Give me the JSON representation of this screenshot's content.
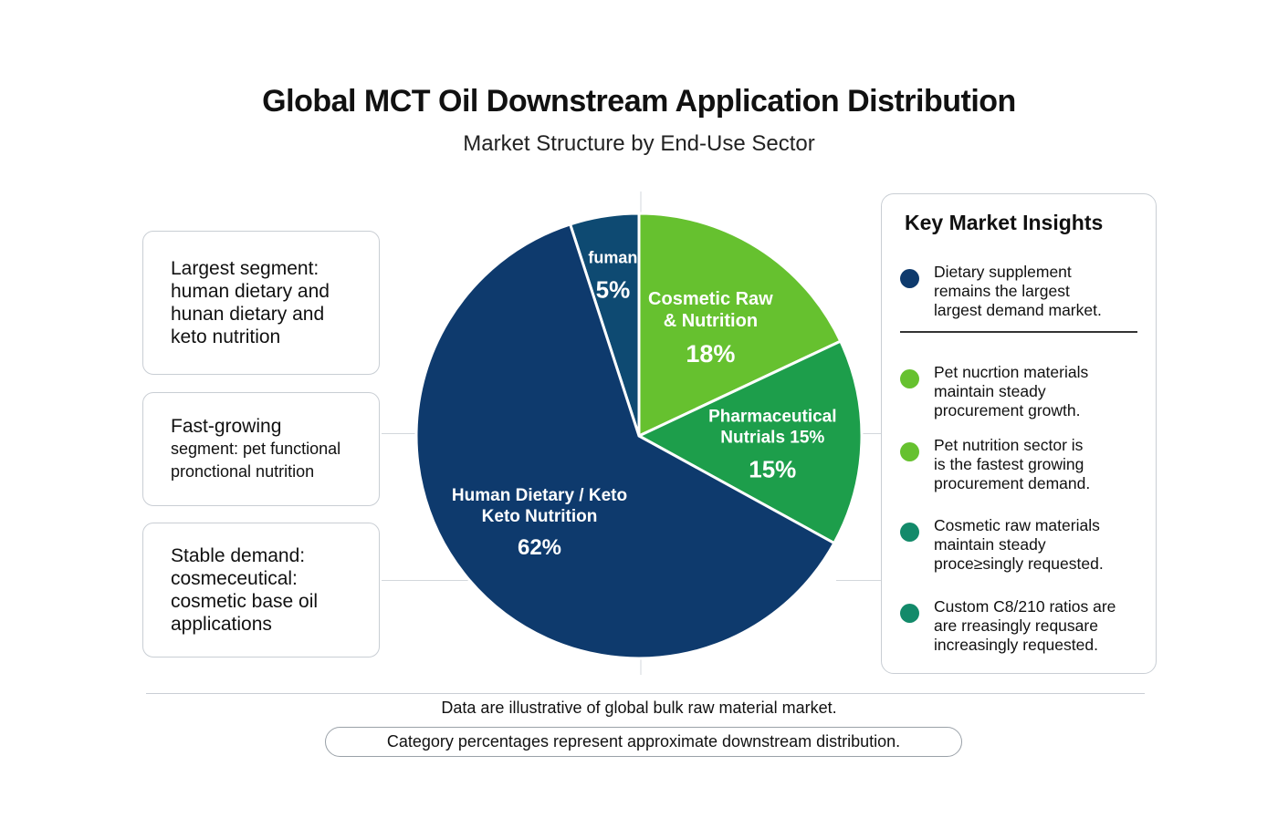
{
  "header": {
    "title": "Global MCT Oil Downstream Application Distribution",
    "subtitle": "Market Structure by End-Use Sector"
  },
  "left_notes": [
    {
      "lines": [
        "Largest segment:",
        "human dietary and",
        "hunan dietary and",
        "keto nutrition"
      ]
    },
    {
      "lines": [
        "Fast-growing",
        "segment: pet functional",
        "pronctional nutrition"
      ]
    },
    {
      "lines": [
        "Stable demand:",
        "cosmeceutical:",
        "cosmetic base oil",
        "applications"
      ]
    }
  ],
  "chart_data": {
    "type": "pie",
    "title": "Global MCT Oil Downstream Application Distribution",
    "subtitle": "Market Structure by End-Use Sector",
    "slices": [
      {
        "label_lines": [
          "fuman"
        ],
        "value_text": "5%",
        "value": 5,
        "color": "#0e4a72"
      },
      {
        "label_lines": [
          "Cosmetic Raw",
          "& Nutrition"
        ],
        "value_text": "18%",
        "value": 18,
        "color": "#66c12f"
      },
      {
        "label_lines": [
          "Pharmaceutical",
          "Nutrials 15%"
        ],
        "value_text": "15%",
        "value": 15,
        "color": "#1d9e4b"
      },
      {
        "label_lines": [
          "Human Dietary / Keto",
          "Keto Nutrition"
        ],
        "value_text": "62%",
        "value": 62,
        "color": "#0e3a6d"
      }
    ]
  },
  "insights": {
    "title": "Key Market Insights",
    "items": [
      {
        "lines": [
          "Dietary supplement",
          "remains the largest",
          "largest demand market."
        ],
        "color": "#0e3a6d"
      },
      {
        "lines": [
          "Pet nucrtion materials",
          "maintain steady",
          "procurement growth."
        ],
        "color": "#66c12f"
      },
      {
        "lines": [
          "Pet nutrition sector is",
          "is the fastest growing",
          "procurement demand."
        ],
        "color": "#66c12f"
      },
      {
        "lines": [
          "Cosmetic raw materials",
          "maintain steady",
          "proce≥singly requested."
        ],
        "color": "#138a6a"
      },
      {
        "lines": [
          "Custom C8/210 ratios are",
          "are rreasingly requsare",
          "increasingly requested."
        ],
        "color": "#138a6a"
      }
    ]
  },
  "footer": {
    "note": "Data are illustrative of global bulk raw material market.",
    "pill": "Category percentages represent approximate downstream distribution."
  }
}
